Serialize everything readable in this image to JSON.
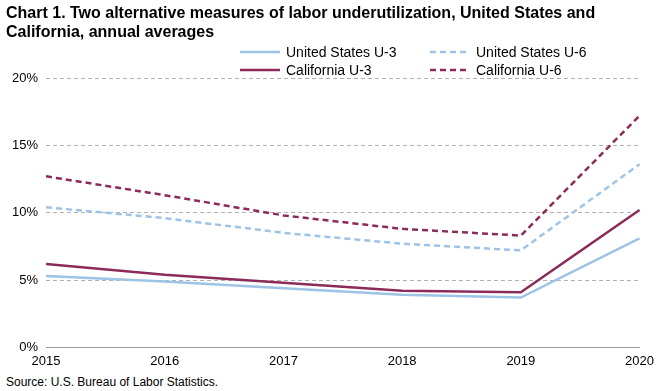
{
  "chart_data": {
    "type": "line",
    "title": "Chart 1. Two alternative measures of labor underutilization, United States and California, annual averages",
    "source": "Source: U.S. Bureau of Labor Statistics.",
    "categories": [
      "2015",
      "2016",
      "2017",
      "2018",
      "2019",
      "2020"
    ],
    "series": [
      {
        "name": "United States U-3",
        "color": "#9dc3e6",
        "line_style": "solid",
        "values": [
          5.3,
          4.9,
          4.4,
          3.9,
          3.7,
          8.1
        ]
      },
      {
        "name": "United States U-6",
        "color": "#9dc3e6",
        "line_style": "dashed",
        "values": [
          10.4,
          9.6,
          8.5,
          7.7,
          7.2,
          13.6
        ]
      },
      {
        "name": "California U-3",
        "color": "#8c2b5a",
        "line_style": "solid",
        "values": [
          6.2,
          5.4,
          4.8,
          4.2,
          4.1,
          10.2
        ]
      },
      {
        "name": "California U-6",
        "color": "#8c2b5a",
        "line_style": "dashed",
        "values": [
          12.7,
          11.3,
          9.8,
          8.8,
          8.3,
          17.2
        ]
      }
    ],
    "ylim": [
      0,
      20
    ],
    "yticks": [
      {
        "value": 0,
        "label": "0%"
      },
      {
        "value": 5,
        "label": "5%"
      },
      {
        "value": 10,
        "label": "10%"
      },
      {
        "value": 15,
        "label": "15%"
      },
      {
        "value": 20,
        "label": "20%"
      }
    ],
    "grid": true,
    "legend": "top"
  }
}
